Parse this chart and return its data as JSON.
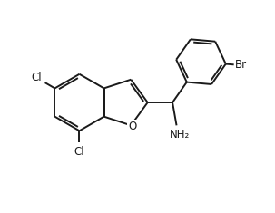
{
  "background": "#ffffff",
  "line_color": "#1a1a1a",
  "line_width": 1.4,
  "font_size": 8.5,
  "figsize": [
    3.03,
    2.35
  ],
  "dpi": 100,
  "atoms": {
    "Cl5": "Cl",
    "Cl7": "Cl",
    "Br": "Br",
    "NH2": "NH₂"
  }
}
